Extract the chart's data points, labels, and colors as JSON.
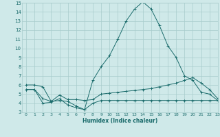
{
  "xlabel": "Humidex (Indice chaleur)",
  "xlim": [
    -0.5,
    23
  ],
  "ylim": [
    3,
    15
  ],
  "yticks": [
    3,
    4,
    5,
    6,
    7,
    8,
    9,
    10,
    11,
    12,
    13,
    14,
    15
  ],
  "xticks": [
    0,
    1,
    2,
    3,
    4,
    5,
    6,
    7,
    8,
    9,
    10,
    11,
    12,
    13,
    14,
    15,
    16,
    17,
    18,
    19,
    20,
    21,
    22,
    23
  ],
  "bg_color": "#cfe9e9",
  "grid_color": "#a8cccc",
  "line_color": "#1a6b6b",
  "line1_x": [
    0,
    1,
    2,
    3,
    4,
    5,
    6,
    7,
    8,
    9,
    10,
    11,
    12,
    13,
    14,
    15,
    16,
    17,
    18,
    19,
    20,
    21,
    22,
    23
  ],
  "line1_y": [
    6.0,
    6.0,
    5.8,
    4.2,
    4.3,
    4.2,
    3.7,
    3.3,
    6.5,
    8.0,
    9.2,
    11.0,
    13.0,
    14.3,
    15.1,
    14.3,
    12.5,
    10.3,
    9.0,
    7.0,
    6.5,
    5.2,
    5.0,
    4.3
  ],
  "line2_x": [
    0,
    1,
    2,
    3,
    4,
    5,
    6,
    7,
    8,
    9,
    10,
    11,
    12,
    13,
    14,
    15,
    16,
    17,
    18,
    19,
    20,
    21,
    22,
    23
  ],
  "line2_y": [
    5.5,
    5.5,
    4.5,
    4.2,
    4.9,
    4.4,
    4.4,
    4.3,
    4.4,
    5.0,
    5.1,
    5.2,
    5.3,
    5.4,
    5.5,
    5.6,
    5.8,
    6.0,
    6.2,
    6.5,
    6.8,
    6.2,
    5.5,
    4.5
  ],
  "line3_x": [
    0,
    1,
    2,
    3,
    4,
    5,
    6,
    7,
    8,
    9,
    10,
    11,
    12,
    13,
    14,
    15,
    16,
    17,
    18,
    19,
    20,
    21,
    22,
    23
  ],
  "line3_y": [
    5.5,
    5.5,
    4.0,
    4.1,
    4.5,
    3.8,
    3.5,
    3.3,
    4.0,
    4.3,
    4.3,
    4.3,
    4.3,
    4.3,
    4.3,
    4.3,
    4.3,
    4.3,
    4.3,
    4.3,
    4.3,
    4.3,
    4.3,
    4.3
  ]
}
